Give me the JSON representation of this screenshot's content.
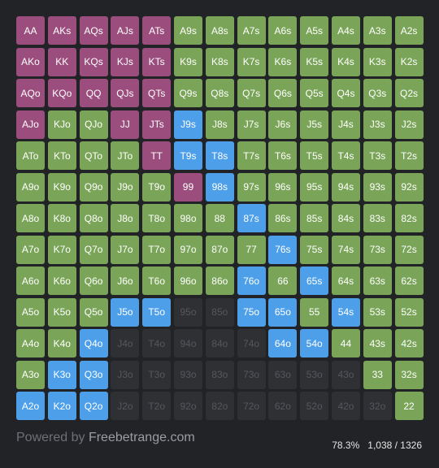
{
  "colors": {
    "background": "#222327",
    "raise": "#9b4e7d",
    "call": "#7aa558",
    "threebet": "#4e9fe9",
    "fold": "#2f3034"
  },
  "grid": {
    "rows": [
      [
        [
          "AA",
          "raise"
        ],
        [
          "AKs",
          "raise"
        ],
        [
          "AQs",
          "raise"
        ],
        [
          "AJs",
          "raise"
        ],
        [
          "ATs",
          "raise"
        ],
        [
          "A9s",
          "call"
        ],
        [
          "A8s",
          "call"
        ],
        [
          "A7s",
          "call"
        ],
        [
          "A6s",
          "call"
        ],
        [
          "A5s",
          "call"
        ],
        [
          "A4s",
          "call"
        ],
        [
          "A3s",
          "call"
        ],
        [
          "A2s",
          "call"
        ]
      ],
      [
        [
          "AKo",
          "raise"
        ],
        [
          "KK",
          "raise"
        ],
        [
          "KQs",
          "raise"
        ],
        [
          "KJs",
          "raise"
        ],
        [
          "KTs",
          "raise"
        ],
        [
          "K9s",
          "call"
        ],
        [
          "K8s",
          "call"
        ],
        [
          "K7s",
          "call"
        ],
        [
          "K6s",
          "call"
        ],
        [
          "K5s",
          "call"
        ],
        [
          "K4s",
          "call"
        ],
        [
          "K3s",
          "call"
        ],
        [
          "K2s",
          "call"
        ]
      ],
      [
        [
          "AQo",
          "raise"
        ],
        [
          "KQo",
          "raise"
        ],
        [
          "QQ",
          "raise"
        ],
        [
          "QJs",
          "raise"
        ],
        [
          "QTs",
          "raise"
        ],
        [
          "Q9s",
          "call"
        ],
        [
          "Q8s",
          "call"
        ],
        [
          "Q7s",
          "call"
        ],
        [
          "Q6s",
          "call"
        ],
        [
          "Q5s",
          "call"
        ],
        [
          "Q4s",
          "call"
        ],
        [
          "Q3s",
          "call"
        ],
        [
          "Q2s",
          "call"
        ]
      ],
      [
        [
          "AJo",
          "raise"
        ],
        [
          "KJo",
          "call"
        ],
        [
          "QJo",
          "call"
        ],
        [
          "JJ",
          "raise"
        ],
        [
          "JTs",
          "raise"
        ],
        [
          "J9s",
          "threebet"
        ],
        [
          "J8s",
          "call"
        ],
        [
          "J7s",
          "call"
        ],
        [
          "J6s",
          "call"
        ],
        [
          "J5s",
          "call"
        ],
        [
          "J4s",
          "call"
        ],
        [
          "J3s",
          "call"
        ],
        [
          "J2s",
          "call"
        ]
      ],
      [
        [
          "ATo",
          "call"
        ],
        [
          "KTo",
          "call"
        ],
        [
          "QTo",
          "call"
        ],
        [
          "JTo",
          "call"
        ],
        [
          "TT",
          "raise"
        ],
        [
          "T9s",
          "threebet"
        ],
        [
          "T8s",
          "threebet"
        ],
        [
          "T7s",
          "call"
        ],
        [
          "T6s",
          "call"
        ],
        [
          "T5s",
          "call"
        ],
        [
          "T4s",
          "call"
        ],
        [
          "T3s",
          "call"
        ],
        [
          "T2s",
          "call"
        ]
      ],
      [
        [
          "A9o",
          "call"
        ],
        [
          "K9o",
          "call"
        ],
        [
          "Q9o",
          "call"
        ],
        [
          "J9o",
          "call"
        ],
        [
          "T9o",
          "call"
        ],
        [
          "99",
          "raise"
        ],
        [
          "98s",
          "threebet"
        ],
        [
          "97s",
          "call"
        ],
        [
          "96s",
          "call"
        ],
        [
          "95s",
          "call"
        ],
        [
          "94s",
          "call"
        ],
        [
          "93s",
          "call"
        ],
        [
          "92s",
          "call"
        ]
      ],
      [
        [
          "A8o",
          "call"
        ],
        [
          "K8o",
          "call"
        ],
        [
          "Q8o",
          "call"
        ],
        [
          "J8o",
          "call"
        ],
        [
          "T8o",
          "call"
        ],
        [
          "98o",
          "call"
        ],
        [
          "88",
          "call"
        ],
        [
          "87s",
          "threebet"
        ],
        [
          "86s",
          "call"
        ],
        [
          "85s",
          "call"
        ],
        [
          "84s",
          "call"
        ],
        [
          "83s",
          "call"
        ],
        [
          "82s",
          "call"
        ]
      ],
      [
        [
          "A7o",
          "call"
        ],
        [
          "K7o",
          "call"
        ],
        [
          "Q7o",
          "call"
        ],
        [
          "J7o",
          "call"
        ],
        [
          "T7o",
          "call"
        ],
        [
          "97o",
          "call"
        ],
        [
          "87o",
          "call"
        ],
        [
          "77",
          "call"
        ],
        [
          "76s",
          "threebet"
        ],
        [
          "75s",
          "call"
        ],
        [
          "74s",
          "call"
        ],
        [
          "73s",
          "call"
        ],
        [
          "72s",
          "call"
        ]
      ],
      [
        [
          "A6o",
          "call"
        ],
        [
          "K6o",
          "call"
        ],
        [
          "Q6o",
          "call"
        ],
        [
          "J6o",
          "call"
        ],
        [
          "T6o",
          "call"
        ],
        [
          "96o",
          "call"
        ],
        [
          "86o",
          "call"
        ],
        [
          "76o",
          "threebet"
        ],
        [
          "66",
          "call"
        ],
        [
          "65s",
          "threebet"
        ],
        [
          "64s",
          "call"
        ],
        [
          "63s",
          "call"
        ],
        [
          "62s",
          "call"
        ]
      ],
      [
        [
          "A5o",
          "call"
        ],
        [
          "K5o",
          "call"
        ],
        [
          "Q5o",
          "call"
        ],
        [
          "J5o",
          "threebet"
        ],
        [
          "T5o",
          "threebet"
        ],
        [
          "95o",
          "fold"
        ],
        [
          "85o",
          "fold"
        ],
        [
          "75o",
          "threebet"
        ],
        [
          "65o",
          "threebet"
        ],
        [
          "55",
          "call"
        ],
        [
          "54s",
          "threebet"
        ],
        [
          "53s",
          "call"
        ],
        [
          "52s",
          "call"
        ]
      ],
      [
        [
          "A4o",
          "call"
        ],
        [
          "K4o",
          "call"
        ],
        [
          "Q4o",
          "threebet"
        ],
        [
          "J4o",
          "fold"
        ],
        [
          "T4o",
          "fold"
        ],
        [
          "94o",
          "fold"
        ],
        [
          "84o",
          "fold"
        ],
        [
          "74o",
          "fold"
        ],
        [
          "64o",
          "threebet"
        ],
        [
          "54o",
          "threebet"
        ],
        [
          "44",
          "call"
        ],
        [
          "43s",
          "call"
        ],
        [
          "42s",
          "call"
        ]
      ],
      [
        [
          "A3o",
          "call"
        ],
        [
          "K3o",
          "threebet"
        ],
        [
          "Q3o",
          "threebet"
        ],
        [
          "J3o",
          "fold"
        ],
        [
          "T3o",
          "fold"
        ],
        [
          "93o",
          "fold"
        ],
        [
          "83o",
          "fold"
        ],
        [
          "73o",
          "fold"
        ],
        [
          "63o",
          "fold"
        ],
        [
          "53o",
          "fold"
        ],
        [
          "43o",
          "fold"
        ],
        [
          "33",
          "call"
        ],
        [
          "32s",
          "call"
        ]
      ],
      [
        [
          "A2o",
          "threebet"
        ],
        [
          "K2o",
          "threebet"
        ],
        [
          "Q2o",
          "threebet"
        ],
        [
          "J2o",
          "fold"
        ],
        [
          "T2o",
          "fold"
        ],
        [
          "92o",
          "fold"
        ],
        [
          "82o",
          "fold"
        ],
        [
          "72o",
          "fold"
        ],
        [
          "62o",
          "fold"
        ],
        [
          "52o",
          "fold"
        ],
        [
          "42o",
          "fold"
        ],
        [
          "32o",
          "fold"
        ],
        [
          "22",
          "call"
        ]
      ]
    ]
  },
  "footer": {
    "powered_prefix": "Powered by ",
    "powered_brand": "Freebetrange.com",
    "percent": "78.3%",
    "combos": "1,038 / 1326"
  }
}
